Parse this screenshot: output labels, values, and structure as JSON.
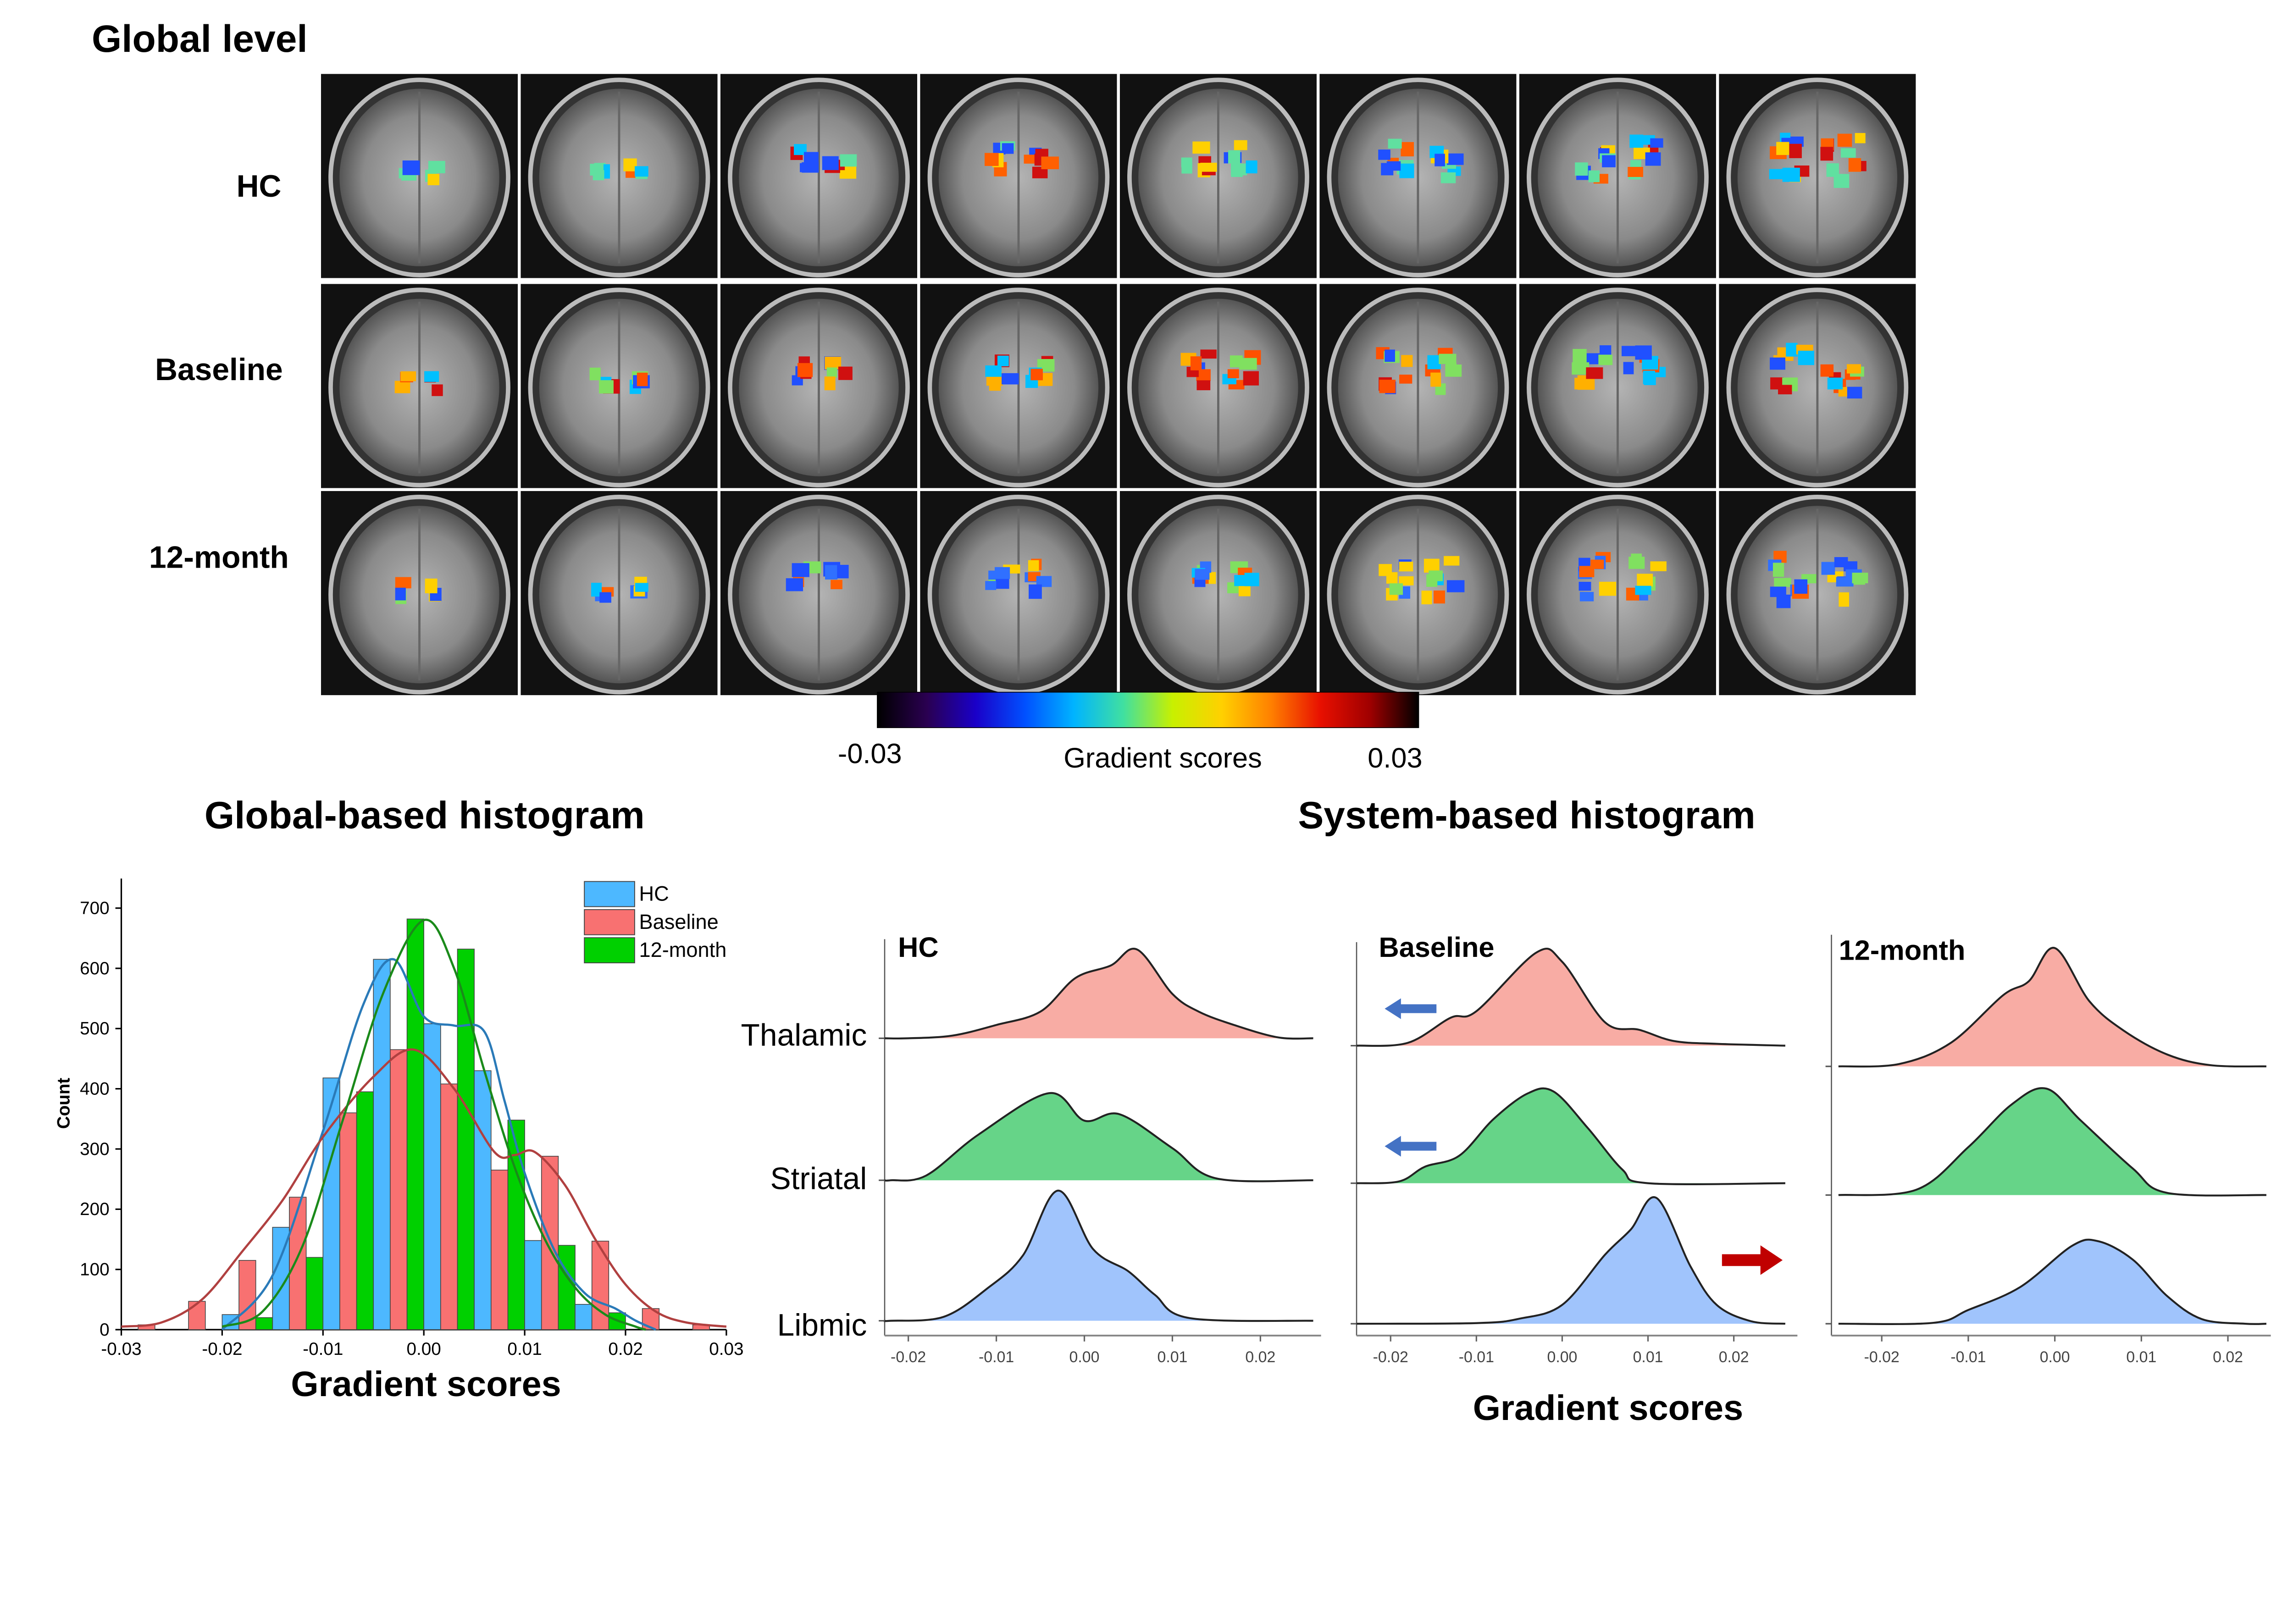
{
  "figure": {
    "global_title": "Global level",
    "row_labels": [
      "HC",
      "Baseline",
      "12-month"
    ],
    "colorbar": {
      "min_label": "-0.03",
      "max_label": "0.03",
      "label": "Gradient scores",
      "colors": [
        "#000000",
        "#2a0050",
        "#1a00c8",
        "#0050ff",
        "#00b4ff",
        "#40e0a0",
        "#c8f000",
        "#ffd000",
        "#ff8000",
        "#e81000",
        "#a00000",
        "#000000"
      ]
    },
    "global_hist_title": "Global-based histogram",
    "system_hist_title": "System-based histogram"
  },
  "chart_data": [
    {
      "type": "bar",
      "title": "Global-based histogram",
      "xlabel": "Gradient scores",
      "ylabel": "Count",
      "xlim": [
        -0.03,
        0.03
      ],
      "ylim": [
        0,
        750
      ],
      "xticks": [
        "-0.03",
        "-0.02",
        "-0.01",
        "0.00",
        "0.01",
        "0.02",
        "0.03"
      ],
      "yticks": [
        "0",
        "100",
        "200",
        "300",
        "400",
        "500",
        "600",
        "700"
      ],
      "legend_placement": "top-right",
      "bin_centers": [
        -0.0275,
        -0.0225,
        -0.0175,
        -0.0125,
        -0.0075,
        -0.0025,
        0.0025,
        0.0075,
        0.0125,
        0.0175,
        0.0225,
        0.0275
      ],
      "series": [
        {
          "name": "HC",
          "color": "#4db8ff",
          "curve_color": "#2a7ab8",
          "values": [
            0,
            0,
            25,
            170,
            418,
            615,
            508,
            430,
            148,
            42,
            0,
            0
          ],
          "density": [
            [
              -0.02,
              0
            ],
            [
              -0.015,
              90
            ],
            [
              -0.01,
              330
            ],
            [
              -0.006,
              540
            ],
            [
              -0.003,
              615
            ],
            [
              0,
              520
            ],
            [
              0.003,
              505
            ],
            [
              0.006,
              495
            ],
            [
              0.008,
              380
            ],
            [
              0.01,
              260
            ],
            [
              0.013,
              130
            ],
            [
              0.016,
              60
            ],
            [
              0.019,
              35
            ],
            [
              0.021,
              15
            ],
            [
              0.023,
              0
            ]
          ]
        },
        {
          "name": "Baseline",
          "color": "#f87171",
          "curve_color": "#b04040",
          "values": [
            8,
            47,
            115,
            220,
            360,
            465,
            408,
            265,
            288,
            147,
            35,
            8
          ],
          "density": [
            [
              -0.03,
              5
            ],
            [
              -0.026,
              12
            ],
            [
              -0.022,
              50
            ],
            [
              -0.018,
              130
            ],
            [
              -0.014,
              215
            ],
            [
              -0.01,
              320
            ],
            [
              -0.005,
              420
            ],
            [
              -0.001,
              465
            ],
            [
              0.003,
              400
            ],
            [
              0.007,
              295
            ],
            [
              0.009,
              290
            ],
            [
              0.011,
              295
            ],
            [
              0.014,
              240
            ],
            [
              0.017,
              150
            ],
            [
              0.02,
              75
            ],
            [
              0.023,
              30
            ],
            [
              0.026,
              12
            ],
            [
              0.03,
              5
            ]
          ]
        },
        {
          "name": "12-month",
          "color": "#00d000",
          "curve_color": "#1a8a1a",
          "values": [
            0,
            0,
            20,
            120,
            395,
            682,
            632,
            348,
            140,
            28,
            0,
            0
          ],
          "density": [
            [
              -0.02,
              5
            ],
            [
              -0.016,
              30
            ],
            [
              -0.012,
              140
            ],
            [
              -0.008,
              350
            ],
            [
              -0.004,
              560
            ],
            [
              0,
              680
            ],
            [
              0.003,
              600
            ],
            [
              0.006,
              430
            ],
            [
              0.009,
              270
            ],
            [
              0.012,
              150
            ],
            [
              0.015,
              70
            ],
            [
              0.018,
              25
            ],
            [
              0.021,
              5
            ],
            [
              0.022,
              0
            ]
          ]
        }
      ]
    },
    {
      "type": "area",
      "title": "System-based histogram",
      "xlabel": "Gradient scores",
      "xticks": [
        "-0.02",
        "-0.01",
        "0.00",
        "0.01",
        "0.02"
      ],
      "xlim": [
        -0.025,
        0.027
      ],
      "systems": [
        "Thalamic",
        "Striatal",
        "Libmic"
      ],
      "system_colors": [
        "#f8aca4",
        "#66d488",
        "#a0c4fc"
      ],
      "panels": [
        {
          "name": "HC",
          "ridges": [
            [
              [
                -0.025,
                0
              ],
              [
                -0.02,
                0
              ],
              [
                -0.015,
                0.03
              ],
              [
                -0.01,
                0.15
              ],
              [
                -0.005,
                0.3
              ],
              [
                -0.001,
                0.68
              ],
              [
                0.003,
                0.82
              ],
              [
                0.006,
                1
              ],
              [
                0.01,
                0.5
              ],
              [
                0.013,
                0.3
              ],
              [
                0.017,
                0.15
              ],
              [
                0.022,
                0.01
              ],
              [
                0.026,
                0
              ]
            ],
            [
              [
                -0.025,
                0
              ],
              [
                -0.022,
                0
              ],
              [
                -0.018,
                0.05
              ],
              [
                -0.012,
                0.5
              ],
              [
                -0.004,
                0.95
              ],
              [
                0,
                0.65
              ],
              [
                0.004,
                0.72
              ],
              [
                0.01,
                0.35
              ],
              [
                0.015,
                0.02
              ],
              [
                0.026,
                0
              ]
            ],
            [
              [
                -0.025,
                0
              ],
              [
                -0.022,
                0
              ],
              [
                -0.016,
                0.03
              ],
              [
                -0.011,
                0.25
              ],
              [
                -0.007,
                0.5
              ],
              [
                -0.003,
                1
              ],
              [
                0.001,
                0.55
              ],
              [
                0.005,
                0.38
              ],
              [
                0.008,
                0.2
              ],
              [
                0.012,
                0.02
              ],
              [
                0.026,
                0
              ]
            ]
          ],
          "arrows": [
            null,
            null,
            null
          ]
        },
        {
          "name": "Baseline",
          "ridges": [
            [
              [
                -0.025,
                0
              ],
              [
                -0.018,
                0.03
              ],
              [
                -0.013,
                0.3
              ],
              [
                -0.01,
                0.37
              ],
              [
                -0.003,
                1
              ],
              [
                0,
                0.9
              ],
              [
                0.005,
                0.25
              ],
              [
                0.009,
                0.17
              ],
              [
                0.013,
                0.05
              ],
              [
                0.018,
                0.02
              ],
              [
                0.026,
                0
              ]
            ],
            [
              [
                -0.025,
                0
              ],
              [
                -0.019,
                0.02
              ],
              [
                -0.016,
                0.18
              ],
              [
                -0.012,
                0.3
              ],
              [
                -0.008,
                0.7
              ],
              [
                -0.004,
                0.98
              ],
              [
                -0.001,
                1
              ],
              [
                0.003,
                0.6
              ],
              [
                0.007,
                0.15
              ],
              [
                0.01,
                0
              ],
              [
                0.026,
                0
              ]
            ],
            [
              [
                -0.025,
                0
              ],
              [
                -0.01,
                0.005
              ],
              [
                -0.005,
                0.04
              ],
              [
                0,
                0.15
              ],
              [
                0.005,
                0.55
              ],
              [
                0.008,
                0.75
              ],
              [
                0.011,
                1
              ],
              [
                0.015,
                0.45
              ],
              [
                0.018,
                0.15
              ],
              [
                0.022,
                0.02
              ],
              [
                0.026,
                0
              ]
            ]
          ],
          "arrows": [
            "left",
            "left",
            "right"
          ],
          "arrow_colors": {
            "left": "#4472c4",
            "right": "#c00000"
          }
        },
        {
          "name": "12-month",
          "ridges": [
            [
              [
                -0.025,
                0
              ],
              [
                -0.018,
                0.02
              ],
              [
                -0.012,
                0.2
              ],
              [
                -0.006,
                0.6
              ],
              [
                -0.003,
                0.72
              ],
              [
                0,
                1
              ],
              [
                0.004,
                0.55
              ],
              [
                0.008,
                0.3
              ],
              [
                0.013,
                0.1
              ],
              [
                0.018,
                0.01
              ],
              [
                0.026,
                0
              ]
            ],
            [
              [
                -0.025,
                0
              ],
              [
                -0.016,
                0.05
              ],
              [
                -0.01,
                0.45
              ],
              [
                -0.005,
                0.85
              ],
              [
                -0.001,
                1
              ],
              [
                0.003,
                0.7
              ],
              [
                0.009,
                0.25
              ],
              [
                0.013,
                0.02
              ],
              [
                0.026,
                0
              ]
            ],
            [
              [
                -0.025,
                0
              ],
              [
                -0.014,
                0.01
              ],
              [
                -0.01,
                0.15
              ],
              [
                -0.004,
                0.4
              ],
              [
                0.002,
                0.85
              ],
              [
                0.005,
                0.9
              ],
              [
                0.009,
                0.7
              ],
              [
                0.013,
                0.3
              ],
              [
                0.017,
                0.05
              ],
              [
                0.022,
                0
              ],
              [
                0.026,
                0
              ]
            ]
          ],
          "arrows": [
            null,
            null,
            null
          ]
        }
      ]
    }
  ]
}
